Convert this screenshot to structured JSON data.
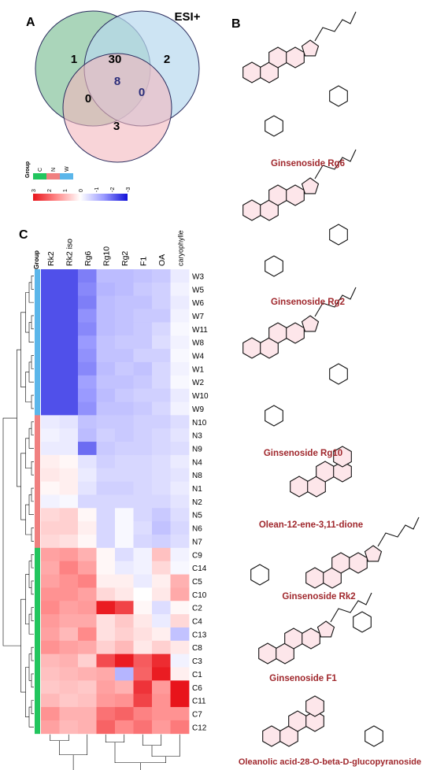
{
  "panels": {
    "a": "A",
    "b": "B",
    "c": "C"
  },
  "venn": {
    "title": "ESI+",
    "regions": {
      "c_only": "1",
      "c_w": "30",
      "w_only": "2",
      "c_n": "0",
      "all": "8",
      "n_w": "0",
      "n_only": "3"
    },
    "colors": {
      "c": "#8dc7a3",
      "w": "#b8d9ee",
      "n": "#f4b8be",
      "all_text": "#2b2d7a"
    }
  },
  "group_legend": {
    "title": "Group",
    "items": [
      {
        "label": "C",
        "color": "#22c55e"
      },
      {
        "label": "N",
        "color": "#f08080"
      },
      {
        "label": "W",
        "color": "#5bb6ea"
      }
    ]
  },
  "color_scale": {
    "ticks": [
      "3",
      "2",
      "1",
      "0",
      "-1",
      "-2",
      "-3"
    ],
    "colors": [
      "#e8141b",
      "#ff8a8a",
      "#ffffff",
      "#9a9aff",
      "#1010d8"
    ]
  },
  "heatmap": {
    "group_label": "Group",
    "columns": [
      "Rk2",
      "Rk2 iso",
      "Rg6",
      "Rg10",
      "Rg2",
      "F1",
      "OA",
      "caryophyllene"
    ],
    "rows": [
      "W3",
      "W5",
      "W6",
      "W7",
      "W11",
      "W8",
      "W4",
      "W1",
      "W2",
      "W10",
      "W9",
      "N10",
      "N3",
      "N9",
      "N4",
      "N8",
      "N1",
      "N2",
      "N5",
      "N6",
      "N7",
      "C9",
      "C14",
      "C5",
      "C10",
      "C2",
      "C4",
      "C13",
      "C8",
      "C3",
      "C1",
      "C6",
      "C11",
      "C7",
      "C12"
    ],
    "row_groups": [
      "W",
      "W",
      "W",
      "W",
      "W",
      "W",
      "W",
      "W",
      "W",
      "W",
      "W",
      "N",
      "N",
      "N",
      "N",
      "N",
      "N",
      "N",
      "N",
      "N",
      "N",
      "C",
      "C",
      "C",
      "C",
      "C",
      "C",
      "C",
      "C",
      "C",
      "C",
      "C",
      "C",
      "C",
      "C"
    ],
    "group_colors": {
      "W": "#5bb6ea",
      "N": "#f08080",
      "C": "#22c55e"
    },
    "values": [
      [
        -2.3,
        -2.3,
        -1.8,
        -1.0,
        -1.0,
        -0.9,
        -0.8,
        -0.3
      ],
      [
        -2.3,
        -2.3,
        -1.7,
        -1.1,
        -1.0,
        -0.8,
        -0.7,
        -0.2
      ],
      [
        -2.3,
        -2.3,
        -1.8,
        -1.0,
        -0.9,
        -0.9,
        -0.7,
        -0.3
      ],
      [
        -2.3,
        -2.3,
        -1.6,
        -1.0,
        -0.9,
        -0.8,
        -0.8,
        -0.2
      ],
      [
        -2.3,
        -2.3,
        -1.7,
        -1.0,
        -0.9,
        -0.8,
        -0.6,
        -0.1
      ],
      [
        -2.3,
        -2.3,
        -1.5,
        -0.9,
        -0.8,
        -0.8,
        -0.5,
        -0.2
      ],
      [
        -2.3,
        -2.3,
        -1.6,
        -0.9,
        -0.9,
        -0.7,
        -0.7,
        -0.1
      ],
      [
        -2.3,
        -2.3,
        -1.7,
        -1.0,
        -0.8,
        -0.9,
        -0.6,
        -0.2
      ],
      [
        -2.3,
        -2.3,
        -1.4,
        -0.9,
        -0.9,
        -0.8,
        -0.6,
        -0.1
      ],
      [
        -2.3,
        -2.3,
        -1.5,
        -1.0,
        -0.8,
        -0.7,
        -0.7,
        -0.3
      ],
      [
        -2.3,
        -2.3,
        -1.6,
        -0.9,
        -0.9,
        -0.8,
        -0.6,
        -0.2
      ],
      [
        -0.3,
        -0.4,
        -0.9,
        -0.8,
        -0.8,
        -0.7,
        -0.7,
        -0.5
      ],
      [
        -0.2,
        -0.3,
        -1.0,
        -0.7,
        -0.8,
        -0.7,
        -0.6,
        -0.4
      ],
      [
        -0.3,
        -0.3,
        -2.0,
        -0.8,
        -0.7,
        -0.7,
        -0.6,
        -0.5
      ],
      [
        0.2,
        0.1,
        -0.4,
        -0.7,
        -0.6,
        -0.6,
        -0.5,
        -0.3
      ],
      [
        0.3,
        0.2,
        -0.3,
        -0.6,
        -0.6,
        -0.6,
        -0.5,
        -0.4
      ],
      [
        0.1,
        0.2,
        -0.4,
        -0.7,
        -0.7,
        -0.6,
        -0.5,
        -0.3
      ],
      [
        -0.2,
        -0.1,
        -0.6,
        -0.6,
        -0.6,
        -0.6,
        -0.6,
        -0.4
      ],
      [
        0.5,
        0.6,
        0.1,
        -0.6,
        -0.1,
        -0.6,
        -0.8,
        -0.5
      ],
      [
        0.6,
        0.6,
        0.2,
        -0.6,
        -0.1,
        -0.5,
        -0.9,
        -0.6
      ],
      [
        0.5,
        0.4,
        0.1,
        -0.6,
        -0.1,
        -0.6,
        -0.7,
        -0.5
      ],
      [
        1.2,
        1.3,
        1.0,
        0.1,
        -0.5,
        -0.2,
        0.8,
        -0.2
      ],
      [
        1.1,
        1.6,
        1.2,
        0.1,
        -0.3,
        -0.2,
        0.5,
        -0.1
      ],
      [
        1.2,
        1.4,
        1.6,
        0.2,
        0.2,
        -0.3,
        0.2,
        1.0
      ],
      [
        1.4,
        1.4,
        1.2,
        0.5,
        0.3,
        0.0,
        0.3,
        1.1
      ],
      [
        1.5,
        1.2,
        1.3,
        2.9,
        2.4,
        0.1,
        -0.5,
        0.1
      ],
      [
        1.3,
        1.1,
        1.1,
        0.4,
        0.7,
        0.3,
        -0.3,
        0.5
      ],
      [
        1.2,
        0.9,
        1.5,
        0.4,
        0.6,
        0.4,
        0.2,
        -0.9
      ],
      [
        1.4,
        1.2,
        1.1,
        0.6,
        0.9,
        0.3,
        0.6,
        0.3
      ],
      [
        0.9,
        1.0,
        0.6,
        2.3,
        2.9,
        2.1,
        2.7,
        -0.2
      ],
      [
        0.8,
        0.9,
        1.0,
        1.1,
        -1.1,
        2.0,
        2.9,
        0.2
      ],
      [
        0.7,
        0.8,
        0.7,
        1.2,
        1.0,
        2.6,
        1.3,
        3.0
      ],
      [
        0.9,
        0.7,
        0.8,
        1.3,
        1.4,
        2.4,
        1.4,
        3.0
      ],
      [
        1.4,
        1.0,
        1.0,
        1.8,
        2.0,
        1.6,
        1.4,
        1.4
      ],
      [
        1.2,
        0.9,
        1.0,
        2.0,
        1.5,
        1.8,
        1.3,
        1.7
      ]
    ]
  },
  "structures": [
    {
      "name": "Ginsenoside Rg6"
    },
    {
      "name": "Ginsenoside Rg2"
    },
    {
      "name": "Ginsenoside Rg10"
    },
    {
      "name": "Olean-12-ene-3,11-dione"
    },
    {
      "name": "Ginsenoside Rk2"
    },
    {
      "name": "Ginsenoside F1"
    },
    {
      "name": "Oleanolic acid-28-O-beta-D-glucopyranoside"
    }
  ]
}
